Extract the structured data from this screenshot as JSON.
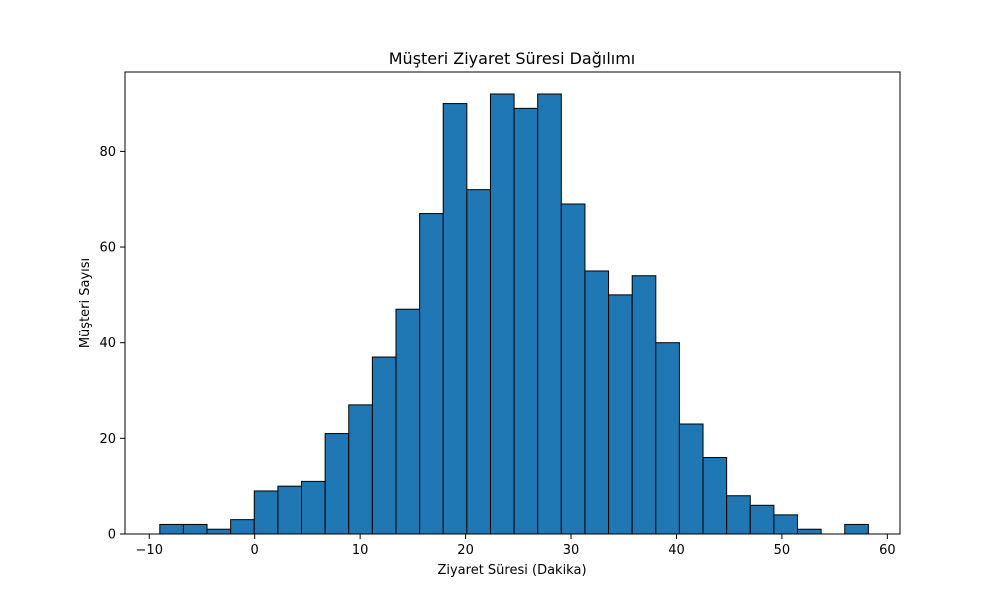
{
  "chart_data": {
    "type": "bar",
    "title": "Müşteri Ziyaret Süresi Dağılımı",
    "xlabel": "Ziyaret Süresi (Dakika)",
    "ylabel": "Müşteri Sayısı",
    "xlim": [
      -12.3,
      61.2
    ],
    "ylim": [
      0,
      96.6
    ],
    "x_ticks": [
      -10,
      0,
      10,
      20,
      30,
      40,
      50,
      60
    ],
    "y_ticks": [
      0,
      20,
      40,
      60,
      80
    ],
    "bins": [
      {
        "start": -9.0,
        "end": -6.76,
        "count": 2
      },
      {
        "start": -6.76,
        "end": -4.52,
        "count": 2
      },
      {
        "start": -4.52,
        "end": -2.28,
        "count": 1
      },
      {
        "start": -2.28,
        "end": -0.04,
        "count": 3
      },
      {
        "start": -0.04,
        "end": 2.2,
        "count": 9
      },
      {
        "start": 2.2,
        "end": 4.44,
        "count": 10
      },
      {
        "start": 4.44,
        "end": 6.68,
        "count": 11
      },
      {
        "start": 6.68,
        "end": 8.92,
        "count": 21
      },
      {
        "start": 8.92,
        "end": 11.16,
        "count": 27
      },
      {
        "start": 11.16,
        "end": 13.4,
        "count": 37
      },
      {
        "start": 13.4,
        "end": 15.64,
        "count": 47
      },
      {
        "start": 15.64,
        "end": 17.88,
        "count": 67
      },
      {
        "start": 17.88,
        "end": 20.12,
        "count": 90
      },
      {
        "start": 20.12,
        "end": 22.36,
        "count": 72
      },
      {
        "start": 22.36,
        "end": 24.6,
        "count": 92
      },
      {
        "start": 24.6,
        "end": 26.84,
        "count": 89
      },
      {
        "start": 26.84,
        "end": 29.08,
        "count": 92
      },
      {
        "start": 29.08,
        "end": 31.32,
        "count": 69
      },
      {
        "start": 31.32,
        "end": 33.56,
        "count": 55
      },
      {
        "start": 33.56,
        "end": 35.8,
        "count": 50
      },
      {
        "start": 35.8,
        "end": 38.04,
        "count": 54
      },
      {
        "start": 38.04,
        "end": 40.28,
        "count": 40
      },
      {
        "start": 40.28,
        "end": 42.52,
        "count": 23
      },
      {
        "start": 42.52,
        "end": 44.76,
        "count": 16
      },
      {
        "start": 44.76,
        "end": 47.0,
        "count": 8
      },
      {
        "start": 47.0,
        "end": 49.24,
        "count": 6
      },
      {
        "start": 49.24,
        "end": 51.48,
        "count": 4
      },
      {
        "start": 51.48,
        "end": 53.72,
        "count": 1
      },
      {
        "start": 53.72,
        "end": 55.96,
        "count": 0
      },
      {
        "start": 55.96,
        "end": 58.2,
        "count": 2
      }
    ],
    "bar_color": "#1f77b4",
    "edge_color": "#000000",
    "grid": false,
    "legend": "none"
  }
}
